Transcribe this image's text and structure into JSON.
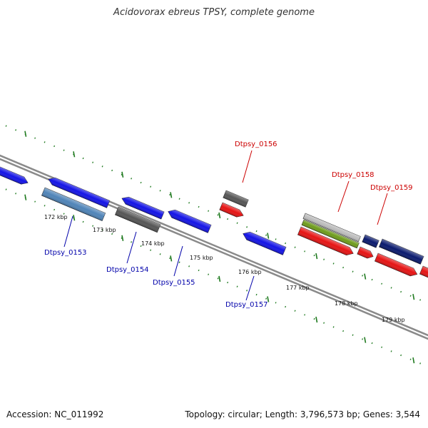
{
  "title": "Acidovorax ebreus TPSY, complete genome",
  "footer": {
    "accession": "Accession: NC_011992",
    "summary": "Topology: circular; Length: 3,796,573 bp; Genes: 3,544"
  },
  "colors": {
    "backbone": "#8a8a8a",
    "ticks": "#1f7a1f",
    "label_forward": "#cc0000",
    "label_reverse": "#0000aa"
  },
  "ticks": [
    {
      "label": "172 kbp"
    },
    {
      "label": "173 kbp"
    },
    {
      "label": "174 kbp"
    },
    {
      "label": "175 kbp"
    },
    {
      "label": "176 kbp"
    },
    {
      "label": "177 kbp"
    },
    {
      "label": "178 kbp"
    },
    {
      "label": "179 kbp"
    }
  ],
  "gene_labels": [
    {
      "name": "Dtpsy_0153",
      "strand": "reverse"
    },
    {
      "name": "Dtpsy_0154",
      "strand": "reverse"
    },
    {
      "name": "Dtpsy_0155",
      "strand": "reverse"
    },
    {
      "name": "Dtpsy_0156",
      "strand": "forward"
    },
    {
      "name": "Dtpsy_0157",
      "strand": "reverse"
    },
    {
      "name": "Dtpsy_0158",
      "strand": "forward"
    },
    {
      "name": "Dtpsy_0159",
      "strand": "forward"
    }
  ],
  "features": [
    {
      "color": "#1414e6"
    },
    {
      "color": "#1414e6"
    },
    {
      "color": "#4f84b8"
    },
    {
      "color": "#1414e6"
    },
    {
      "color": "#555555"
    },
    {
      "color": "#1414e6"
    },
    {
      "color": "#555555"
    },
    {
      "color": "#e61414"
    },
    {
      "color": "#1414e6"
    },
    {
      "color": "#bdbdbd"
    },
    {
      "color": "#6e9c1c"
    },
    {
      "color": "#e61414"
    },
    {
      "color": "#0a1a6e"
    },
    {
      "color": "#e61414"
    },
    {
      "color": "#0a1a6e"
    },
    {
      "color": "#e61414"
    },
    {
      "color": "#e61414"
    }
  ]
}
